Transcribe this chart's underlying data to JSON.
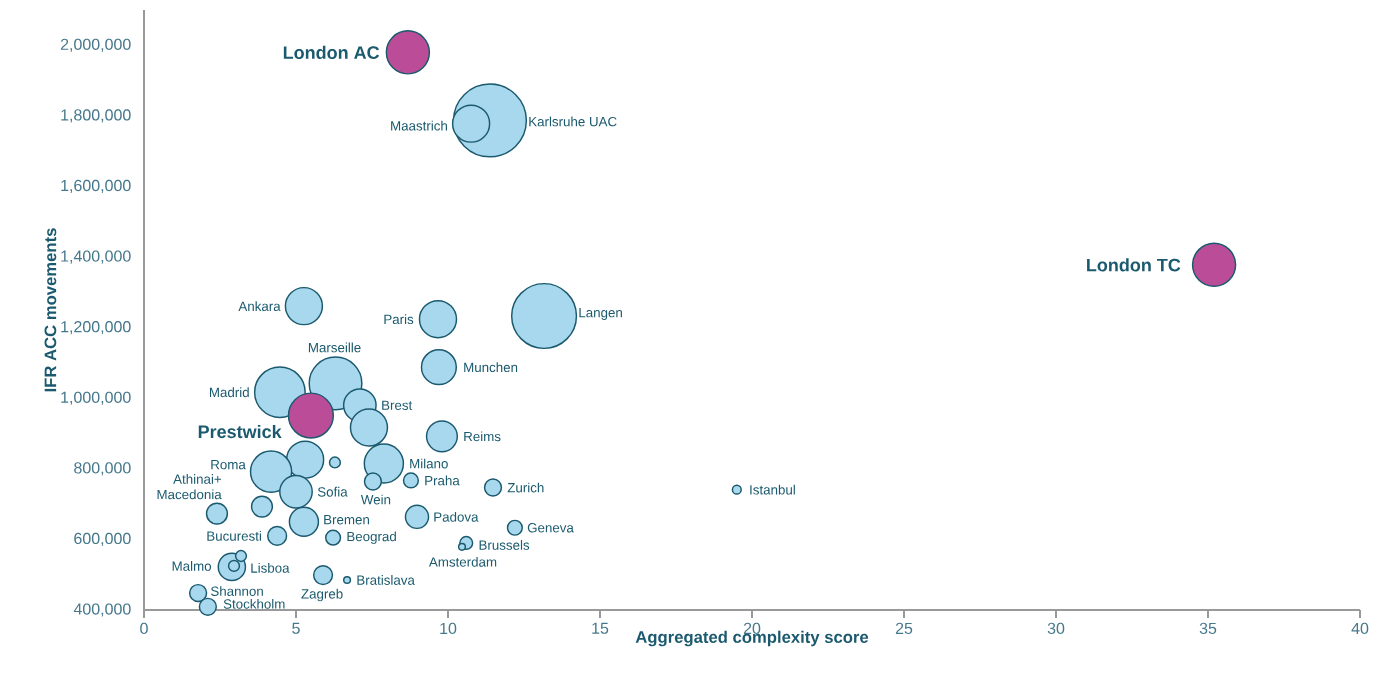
{
  "chart_data": {
    "type": "bubble",
    "xlabel": "Aggregated complexity score",
    "ylabel": "IFR ACC movements",
    "series": [
      {
        "color": "#a8d8ee",
        "x": [
          11.38,
          10.76,
          5.26,
          9.67,
          13.16,
          9.7,
          6.3,
          4.47,
          7.1,
          7.4,
          9.8,
          5.3,
          6.28,
          7.89,
          7.53,
          8.78,
          4.18,
          5.0,
          11.48,
          19.5,
          2.4,
          3.88,
          5.26,
          8.98,
          12.2,
          4.38,
          6.22,
          10.6,
          10.46,
          2.89,
          2.96,
          3.19,
          5.89,
          6.68,
          1.78,
          2.1
        ],
        "values": [
          1787000,
          1778000,
          1261000,
          1224000,
          1233000,
          1088000,
          1042000,
          1017000,
          980000,
          917000,
          892000,
          826000,
          818000,
          815000,
          764000,
          767000,
          792000,
          735000,
          747000,
          741000,
          673000,
          693000,
          650000,
          664000,
          633000,
          610000,
          605000,
          590000,
          579000,
          522000,
          525000,
          553000,
          499000,
          485000,
          448000,
          409000
        ],
        "sizes": [
          1,
          0.28,
          0.28,
          0.28,
          0.8,
          0.25,
          0.54,
          0.5,
          0.22,
          0.28,
          0.2,
          0.28,
          0.034,
          0.31,
          0.07,
          0.056,
          0.34,
          0.22,
          0.07,
          0.025,
          0.1,
          0.1,
          0.18,
          0.12,
          0.056,
          0.084,
          0.056,
          0.044,
          0.017,
          0.16,
          0.034,
          0.034,
          0.084,
          0.017,
          0.07,
          0.07
        ]
      },
      {
        "color": "#bb4d98",
        "x": [
          8.68,
          35.2,
          5.49
        ],
        "values": [
          1980000,
          1378000,
          951000
        ],
        "sizes": [
          0.37,
          0.37,
          0.4
        ]
      }
    ],
    "xlim": [
      0,
      40
    ],
    "xticks": [
      0,
      5,
      10,
      15,
      20,
      25,
      30,
      35,
      40
    ],
    "ylim": [
      400000,
      2100000
    ],
    "yticks": [
      {
        "value": 400000,
        "label": "400,000"
      },
      {
        "value": 600000,
        "label": "600,000"
      },
      {
        "value": 800000,
        "label": "800,000"
      },
      {
        "value": 1000000,
        "label": "1,000,000"
      },
      {
        "value": 1200000,
        "label": "1,200,000"
      },
      {
        "value": 1400000,
        "label": "1,400,000"
      },
      {
        "value": 1600000,
        "label": "1,600,000"
      },
      {
        "value": 1800000,
        "label": "1,800,000"
      },
      {
        "value": 2000000,
        "label": "2,000,000"
      }
    ],
    "marker": "circle",
    "annotations": [
      {
        "text": "London AC",
        "x": 8.68,
        "y": 1980000
      },
      {
        "text": "Karlsruhe UAC",
        "x": 11.38,
        "y": 1787000
      },
      {
        "text": "Maastrich",
        "x": 10.76,
        "y": 1778000
      },
      {
        "text": "London TC",
        "x": 35.2,
        "y": 1378000
      },
      {
        "text": "Ankara",
        "x": 5.26,
        "y": 1261000
      },
      {
        "text": "Paris",
        "x": 9.67,
        "y": 1224000
      },
      {
        "text": "Langen",
        "x": 13.16,
        "y": 1233000
      },
      {
        "text": "Munchen",
        "x": 9.7,
        "y": 1088000
      },
      {
        "text": "Marseille",
        "x": 6.3,
        "y": 1042000
      },
      {
        "text": "Madrid",
        "x": 4.47,
        "y": 1017000
      },
      {
        "text": "Prestwick",
        "x": 5.49,
        "y": 951000
      },
      {
        "text": "Brest",
        "x": 7.1,
        "y": 980000
      },
      {
        "text": "Reims",
        "x": 9.8,
        "y": 892000
      },
      {
        "text": "Milano",
        "x": 7.89,
        "y": 815000
      },
      {
        "text": "Wein",
        "x": 7.53,
        "y": 764000
      },
      {
        "text": "Praha",
        "x": 8.78,
        "y": 767000
      },
      {
        "text": "Roma",
        "x": 4.18,
        "y": 792000
      },
      {
        "text": "Sofia",
        "x": 5.0,
        "y": 735000
      },
      {
        "text": "Zurich",
        "x": 11.48,
        "y": 747000
      },
      {
        "text": "Istanbul",
        "x": 19.5,
        "y": 741000
      },
      {
        "text": "Athinai+ Macedonia",
        "x": 2.4,
        "y": 673000
      },
      {
        "text": "Bremen",
        "x": 5.26,
        "y": 650000
      },
      {
        "text": "Padova",
        "x": 8.98,
        "y": 664000
      },
      {
        "text": "Geneva",
        "x": 12.2,
        "y": 633000
      },
      {
        "text": "Bucuresti",
        "x": 4.38,
        "y": 610000
      },
      {
        "text": "Beograd",
        "x": 6.22,
        "y": 605000
      },
      {
        "text": "Brussels",
        "x": 10.6,
        "y": 590000
      },
      {
        "text": "Amsterdam",
        "x": 10.46,
        "y": 579000
      },
      {
        "text": "Malmo",
        "x": 2.89,
        "y": 522000
      },
      {
        "text": "Lisboa",
        "x": 2.96,
        "y": 525000
      },
      {
        "text": "Zagreb",
        "x": 5.89,
        "y": 499000
      },
      {
        "text": "Bratislava",
        "x": 6.68,
        "y": 485000
      },
      {
        "text": "Shannon",
        "x": 1.78,
        "y": 448000
      },
      {
        "text": "Stockholm",
        "x": 2.1,
        "y": 409000
      }
    ]
  }
}
